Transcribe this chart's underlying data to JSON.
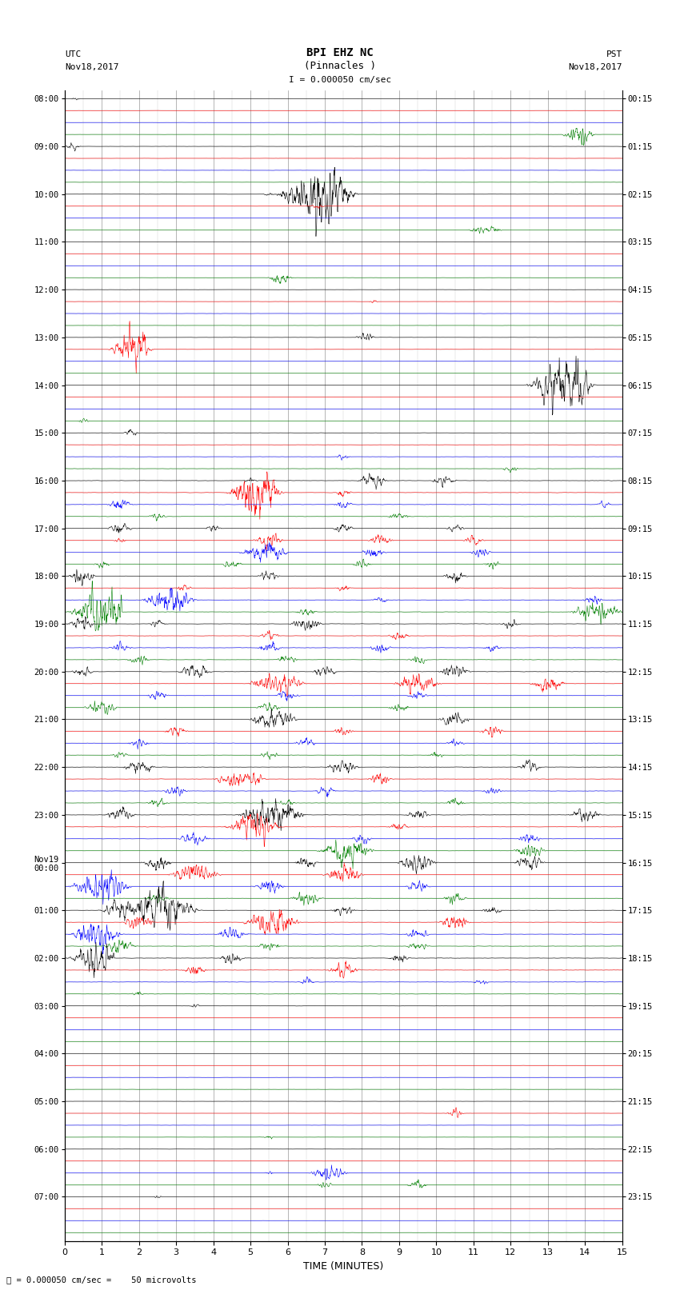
{
  "title_line1": "BPI EHZ NC",
  "title_line2": "(Pinnacles )",
  "scale_label": "I = 0.000050 cm/sec",
  "left_label_top": "UTC",
  "left_label_date": "Nov18,2017",
  "right_label_top": "PST",
  "right_label_date": "Nov18,2017",
  "xlabel": "TIME (MINUTES)",
  "bottom_note": "= 0.000050 cm/sec =    50 microvolts",
  "utc_times": [
    "08:00",
    "09:00",
    "10:00",
    "11:00",
    "12:00",
    "13:00",
    "14:00",
    "15:00",
    "16:00",
    "17:00",
    "18:00",
    "19:00",
    "20:00",
    "21:00",
    "22:00",
    "23:00",
    "Nov19\n00:00",
    "01:00",
    "02:00",
    "03:00",
    "04:00",
    "05:00",
    "06:00",
    "07:00"
  ],
  "pst_times": [
    "00:15",
    "01:15",
    "02:15",
    "03:15",
    "04:15",
    "05:15",
    "06:15",
    "07:15",
    "08:15",
    "09:15",
    "10:15",
    "11:15",
    "12:15",
    "13:15",
    "14:15",
    "15:15",
    "16:15",
    "17:15",
    "18:15",
    "19:15",
    "20:15",
    "21:15",
    "22:15",
    "23:15"
  ],
  "num_rows": 96,
  "x_ticks": [
    0,
    1,
    2,
    3,
    4,
    5,
    6,
    7,
    8,
    9,
    10,
    11,
    12,
    13,
    14,
    15
  ],
  "row_colors_cycle": [
    "black",
    "red",
    "blue",
    "green"
  ],
  "background_color": "#ffffff",
  "grid_major_color": "#999999",
  "grid_minor_color": "#cccccc",
  "figsize": [
    8.5,
    16.13
  ],
  "dpi": 100,
  "samples_per_row": 1800,
  "base_noise": 0.018,
  "trace_scale": 0.38
}
